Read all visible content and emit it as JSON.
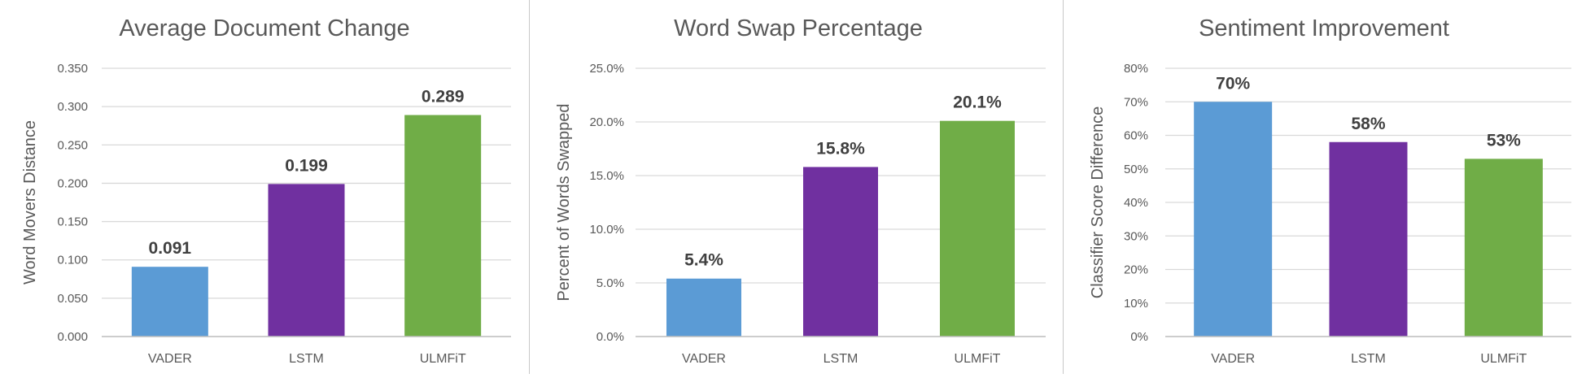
{
  "colors": {
    "vader": "#5b9bd5",
    "lstm": "#7030a0",
    "ulmfit": "#70ad47",
    "grid": "#d9d9d9",
    "text": "#595959",
    "label": "#404040"
  },
  "chart_data": [
    {
      "type": "bar",
      "title": "Average Document Change",
      "ylabel": "Word Movers Distance",
      "categories": [
        "VADER",
        "LSTM",
        "ULMFiT"
      ],
      "values": [
        0.091,
        0.199,
        0.289
      ],
      "data_labels": [
        "0.091",
        "0.199",
        "0.289"
      ],
      "ylim": [
        0,
        0.35
      ],
      "yticks": [
        0,
        0.05,
        0.1,
        0.15,
        0.2,
        0.25,
        0.3,
        0.35
      ],
      "ytick_labels": [
        "0.000",
        "0.050",
        "0.100",
        "0.150",
        "0.200",
        "0.250",
        "0.300",
        "0.350"
      ],
      "grid": true
    },
    {
      "type": "bar",
      "title": "Word Swap Percentage",
      "ylabel": "Percent of Words Swapped",
      "categories": [
        "VADER",
        "LSTM",
        "ULMFiT"
      ],
      "values": [
        5.4,
        15.8,
        20.1
      ],
      "data_labels": [
        "5.4%",
        "15.8%",
        "20.1%"
      ],
      "ylim": [
        0,
        25
      ],
      "yticks": [
        0,
        5,
        10,
        15,
        20,
        25
      ],
      "ytick_labels": [
        "0.0%",
        "5.0%",
        "10.0%",
        "15.0%",
        "20.0%",
        "25.0%"
      ],
      "grid": true
    },
    {
      "type": "bar",
      "title": "Sentiment Improvement",
      "ylabel": "Classifier Score Difference",
      "categories": [
        "VADER",
        "LSTM",
        "ULMFiT"
      ],
      "values": [
        70,
        58,
        53
      ],
      "data_labels": [
        "70%",
        "58%",
        "53%"
      ],
      "ylim": [
        0,
        80
      ],
      "yticks": [
        0,
        10,
        20,
        30,
        40,
        50,
        60,
        70,
        80
      ],
      "ytick_labels": [
        "0%",
        "10%",
        "20%",
        "30%",
        "40%",
        "50%",
        "60%",
        "70%",
        "80%"
      ],
      "grid": true
    }
  ]
}
